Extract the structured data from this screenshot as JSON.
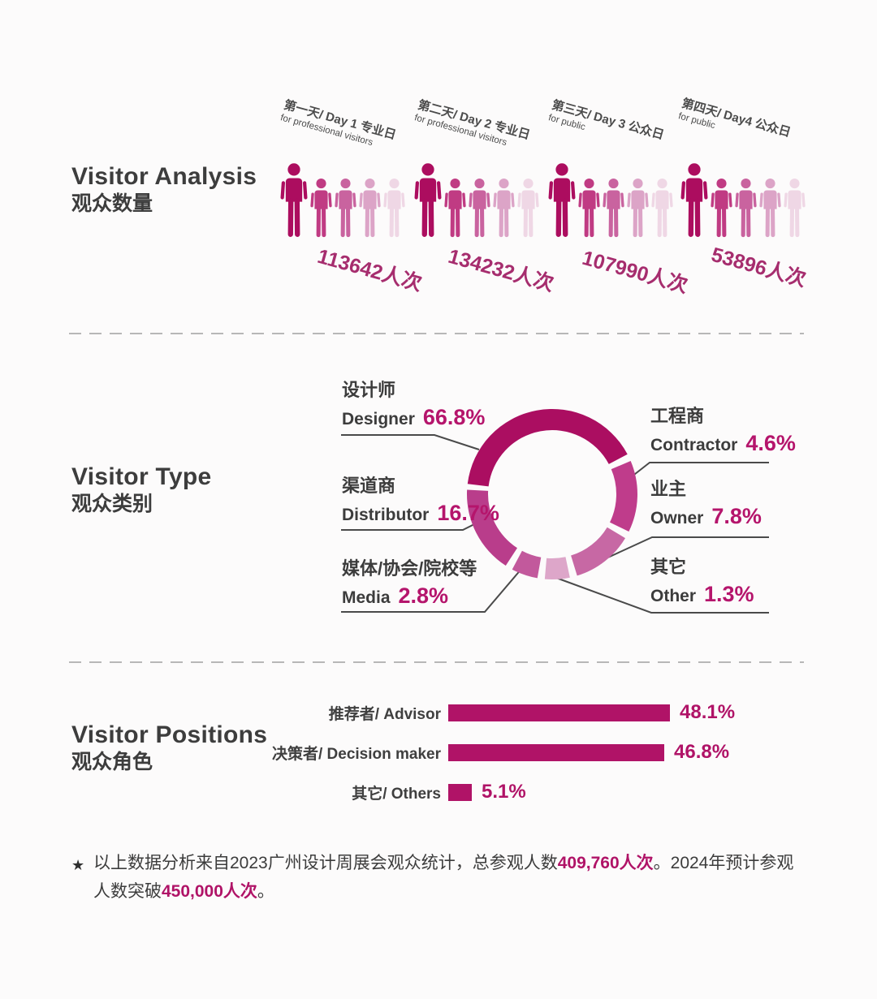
{
  "palette": {
    "accent": "#b01367",
    "pct_text": "#b5156c",
    "count_text": "#a62d6e",
    "heading_text": "#3d3d3d",
    "body_text": "#3c3c3c",
    "divider": "#b7b7b7",
    "background": "#fcfbfb"
  },
  "sections": {
    "analysis": {
      "title_en": "Visitor Analysis",
      "title_zh": "观众数量"
    },
    "type": {
      "title_en": "Visitor Type",
      "title_zh": "观众类别"
    },
    "positions": {
      "title_en": "Visitor Positions",
      "title_zh": "观众角色"
    }
  },
  "chart_data": [
    {
      "type": "pictogram",
      "title": "Visitor Analysis 观众数量",
      "categories": [
        "第一天/ Day 1 专业日",
        "第二天/ Day 2 专业日",
        "第三天/ Day 3 公众日",
        "第四天/ Day4 公众日"
      ],
      "subcategories": [
        "for professional visitors",
        "for professional visitors",
        "for public",
        "for public"
      ],
      "values": [
        113642,
        134232,
        107990,
        53896
      ],
      "value_labels": [
        "113642人次",
        "134232人次",
        "107990人次",
        "53896人次"
      ],
      "figure_colors": [
        "#ac0d5f",
        "#c03b83",
        "#c9639f",
        "#dca4c7",
        "#efd7e5"
      ],
      "figures_per_group": 5
    },
    {
      "type": "pie",
      "subtype": "donut",
      "title": "Visitor Type 观众类别",
      "legend_position": "callout labels left and right",
      "items": [
        {
          "zh": "设计师",
          "en": "Designer",
          "value": 66.8,
          "pct": "66.8%",
          "color": "#ab0e61"
        },
        {
          "zh": "渠道商",
          "en": "Distributor",
          "value": 16.7,
          "pct": "16.7%",
          "color": "#b93d8b"
        },
        {
          "zh": "媒体/协会/院校等",
          "en": "Media",
          "value": 2.8,
          "pct": "2.8%",
          "color": "#c2599c"
        },
        {
          "zh": "工程商",
          "en": "Contractor",
          "value": 4.6,
          "pct": "4.6%",
          "color": "#bf3c8b"
        },
        {
          "zh": "业主",
          "en": "Owner",
          "value": 7.8,
          "pct": "7.8%",
          "color": "#c768a4"
        },
        {
          "zh": "其它",
          "en": "Other",
          "value": 1.3,
          "pct": "1.3%",
          "color": "#dda6c9"
        }
      ]
    },
    {
      "type": "bar",
      "orientation": "horizontal",
      "title": "Visitor Positions 观众角色",
      "categories": [
        "推荐者/ Advisor",
        "决策者/ Decision maker",
        "其它/ Others"
      ],
      "values": [
        48.1,
        46.8,
        5.1
      ],
      "pct_labels": [
        "48.1%",
        "46.8%",
        "5.1%"
      ],
      "bar_color": "#b01367",
      "xlim": [
        0,
        50
      ],
      "grid": false
    }
  ],
  "footnote": {
    "star": "★",
    "part1": "以上数据分析来自2023广州设计周展会观众统计，总参观人数",
    "bold1": "409,760人次",
    "part2": "。2024年预计参观",
    "part3": "人数突破",
    "bold2": "450,000人次",
    "part4": "。"
  }
}
